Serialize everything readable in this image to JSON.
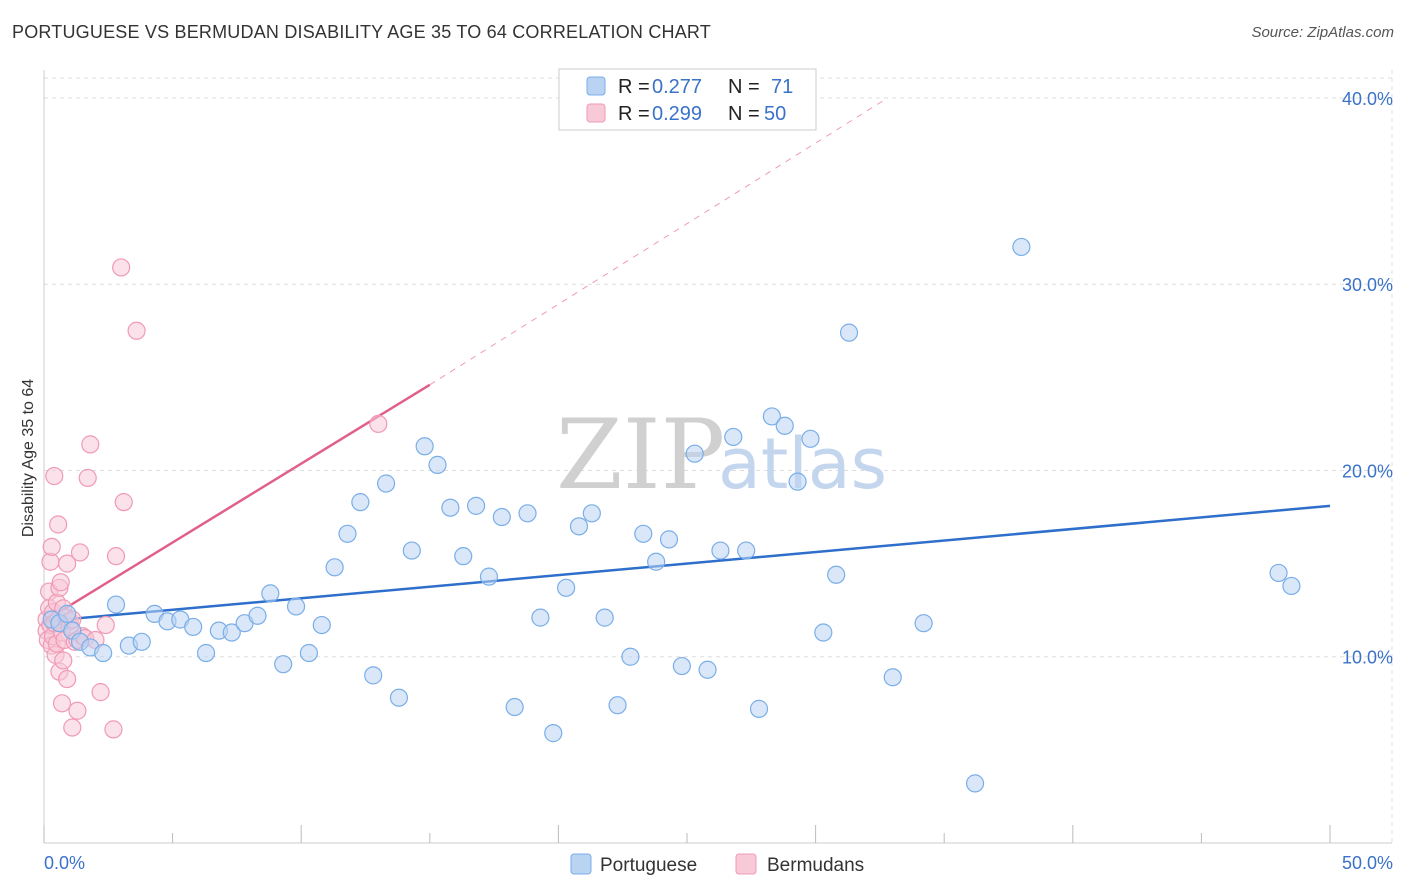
{
  "title": "PORTUGUESE VS BERMUDAN DISABILITY AGE 35 TO 64 CORRELATION CHART",
  "source": "Source: ZipAtlas.com",
  "watermark": {
    "zip": "ZIP",
    "atlas": "atlas"
  },
  "colors": {
    "blue": "#7aaee8",
    "blue_fill": "#b9d3f3",
    "blue_line": "#2e6fcc",
    "pink": "#f09ab5",
    "pink_fill": "#f8c9d7",
    "pink_line": "#e0608a",
    "grid": "#dddddd",
    "axis_text": "#3a72c8"
  },
  "legend": {
    "rows": [
      {
        "r_label": "R = ",
        "r_value": "0.277",
        "n_label": "N = ",
        "n_value": "71"
      },
      {
        "r_label": "R = ",
        "r_value": "0.299",
        "n_label": "N = ",
        "n_value": "50"
      }
    ]
  },
  "bottom_legend": [
    "Portuguese",
    "Bermudans"
  ],
  "chart_data": {
    "type": "scatter",
    "title": "PORTUGUESE VS BERMUDAN DISABILITY AGE 35 TO 64 CORRELATION CHART",
    "xlabel": "",
    "ylabel": "Disability Age 35 to 64",
    "xlim": [
      0,
      50
    ],
    "ylim": [
      0,
      41.5
    ],
    "x_tick_labels": [
      "0.0%",
      "50.0%"
    ],
    "y_ticks": [
      10,
      20,
      30,
      40
    ],
    "y_tick_labels": [
      "10.0%",
      "20.0%",
      "30.0%",
      "40.0%"
    ],
    "series": [
      {
        "name": "Portuguese",
        "R": 0.277,
        "N": 71,
        "trend": {
          "x": [
            0,
            50
          ],
          "y": [
            11.9,
            18.1
          ]
        },
        "points": [
          [
            0.3,
            12.0
          ],
          [
            0.6,
            11.8
          ],
          [
            0.9,
            12.3
          ],
          [
            1.1,
            11.4
          ],
          [
            1.4,
            10.8
          ],
          [
            1.8,
            10.5
          ],
          [
            2.3,
            10.2
          ],
          [
            2.8,
            12.8
          ],
          [
            3.3,
            10.6
          ],
          [
            3.8,
            10.8
          ],
          [
            4.3,
            12.3
          ],
          [
            4.8,
            11.9
          ],
          [
            5.3,
            12.0
          ],
          [
            5.8,
            11.6
          ],
          [
            6.3,
            10.2
          ],
          [
            6.8,
            11.4
          ],
          [
            7.3,
            11.3
          ],
          [
            7.8,
            11.8
          ],
          [
            8.3,
            12.2
          ],
          [
            8.8,
            13.4
          ],
          [
            9.3,
            9.6
          ],
          [
            9.8,
            12.7
          ],
          [
            10.3,
            10.2
          ],
          [
            10.8,
            11.7
          ],
          [
            11.3,
            14.8
          ],
          [
            11.8,
            16.6
          ],
          [
            12.3,
            18.3
          ],
          [
            12.8,
            9.0
          ],
          [
            13.3,
            19.3
          ],
          [
            13.8,
            7.8
          ],
          [
            14.3,
            15.7
          ],
          [
            14.8,
            21.3
          ],
          [
            15.3,
            20.3
          ],
          [
            15.8,
            18.0
          ],
          [
            16.3,
            15.4
          ],
          [
            16.8,
            18.1
          ],
          [
            17.3,
            14.3
          ],
          [
            17.8,
            17.5
          ],
          [
            18.3,
            7.3
          ],
          [
            18.8,
            17.7
          ],
          [
            19.3,
            12.1
          ],
          [
            19.8,
            5.9
          ],
          [
            20.3,
            13.7
          ],
          [
            20.8,
            17.0
          ],
          [
            21.3,
            17.7
          ],
          [
            21.8,
            12.1
          ],
          [
            22.3,
            7.4
          ],
          [
            22.8,
            10.0
          ],
          [
            23.3,
            16.6
          ],
          [
            23.8,
            15.1
          ],
          [
            24.3,
            16.3
          ],
          [
            24.8,
            9.5
          ],
          [
            25.3,
            20.9
          ],
          [
            25.8,
            9.3
          ],
          [
            26.3,
            15.7
          ],
          [
            26.8,
            21.8
          ],
          [
            27.3,
            15.7
          ],
          [
            27.8,
            7.2
          ],
          [
            28.3,
            22.9
          ],
          [
            28.8,
            22.4
          ],
          [
            29.3,
            19.4
          ],
          [
            29.8,
            21.7
          ],
          [
            30.3,
            11.3
          ],
          [
            30.8,
            14.4
          ],
          [
            31.3,
            27.4
          ],
          [
            33.0,
            8.9
          ],
          [
            34.2,
            11.8
          ],
          [
            36.2,
            3.2
          ],
          [
            38.0,
            32.0
          ],
          [
            48.0,
            14.5
          ],
          [
            48.5,
            13.8
          ]
        ]
      },
      {
        "name": "Bermudans",
        "R": 0.299,
        "N": 50,
        "trend": {
          "x": [
            0,
            15
          ],
          "y": [
            11.9,
            24.6
          ]
        },
        "trend_extended": {
          "x": [
            15,
            32.8
          ],
          "y": [
            24.6,
            40.0
          ]
        },
        "points": [
          [
            0.1,
            12.0
          ],
          [
            0.1,
            11.4
          ],
          [
            0.15,
            10.9
          ],
          [
            0.2,
            12.6
          ],
          [
            0.2,
            13.5
          ],
          [
            0.25,
            11.7
          ],
          [
            0.25,
            15.1
          ],
          [
            0.3,
            10.6
          ],
          [
            0.3,
            15.9
          ],
          [
            0.35,
            12.4
          ],
          [
            0.35,
            11.1
          ],
          [
            0.4,
            19.7
          ],
          [
            0.4,
            11.8
          ],
          [
            0.45,
            10.1
          ],
          [
            0.5,
            12.9
          ],
          [
            0.5,
            10.7
          ],
          [
            0.55,
            17.1
          ],
          [
            0.55,
            12.0
          ],
          [
            0.6,
            9.2
          ],
          [
            0.6,
            13.7
          ],
          [
            0.65,
            14.0
          ],
          [
            0.7,
            11.3
          ],
          [
            0.7,
            7.5
          ],
          [
            0.75,
            12.6
          ],
          [
            0.75,
            9.8
          ],
          [
            0.8,
            10.9
          ],
          [
            0.85,
            12.1
          ],
          [
            0.9,
            8.8
          ],
          [
            0.9,
            15.0
          ],
          [
            1.0,
            11.9
          ],
          [
            1.0,
            11.6
          ],
          [
            1.1,
            12.0
          ],
          [
            1.1,
            6.2
          ],
          [
            1.2,
            10.8
          ],
          [
            1.3,
            10.9
          ],
          [
            1.3,
            7.1
          ],
          [
            1.4,
            15.6
          ],
          [
            1.5,
            11.1
          ],
          [
            1.6,
            11.0
          ],
          [
            1.7,
            19.6
          ],
          [
            1.8,
            21.4
          ],
          [
            2.0,
            10.9
          ],
          [
            2.2,
            8.1
          ],
          [
            2.4,
            11.7
          ],
          [
            2.7,
            6.1
          ],
          [
            2.8,
            15.4
          ],
          [
            3.1,
            18.3
          ],
          [
            3.0,
            30.9
          ],
          [
            3.6,
            27.5
          ],
          [
            13.0,
            22.5
          ]
        ]
      }
    ]
  }
}
